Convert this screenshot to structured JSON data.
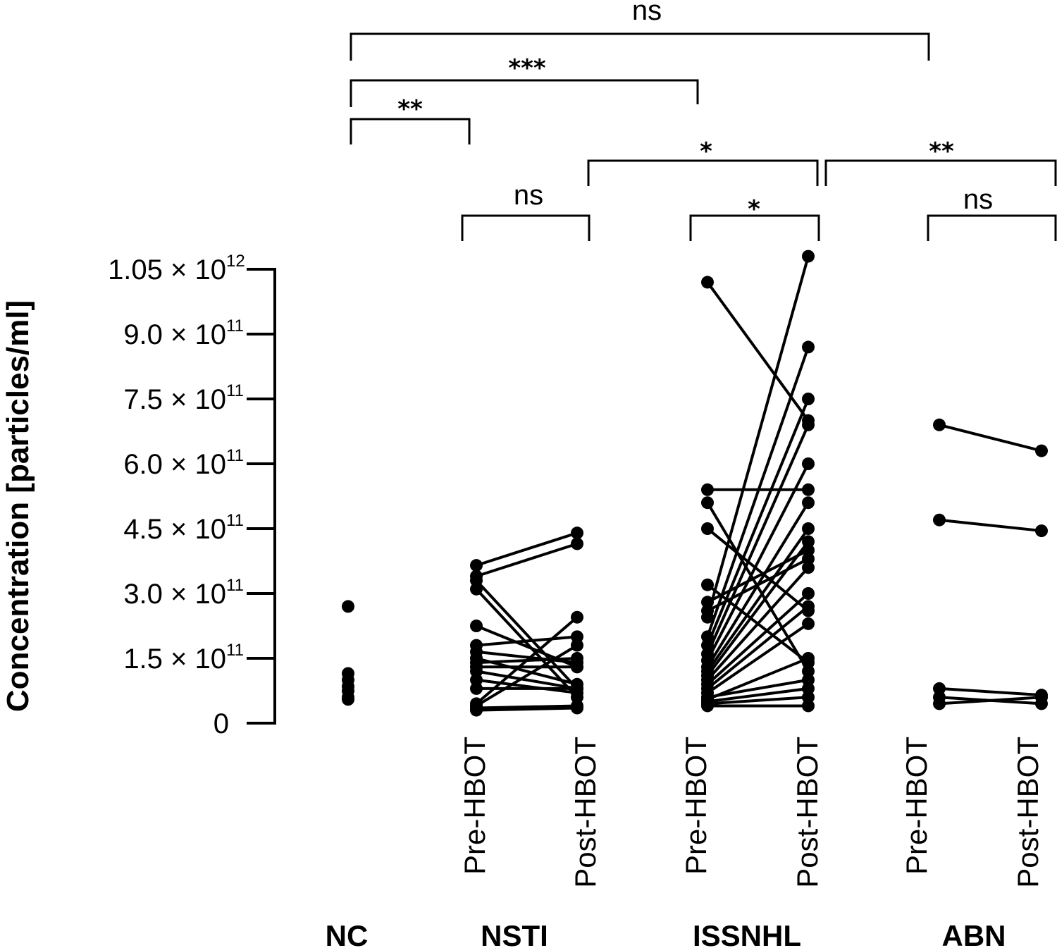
{
  "chart_data": {
    "type": "scatter",
    "ylabel": "Concentration [particles/ml]",
    "ylim": [
      0,
      1050000000000
    ],
    "y_ticks": [
      {
        "value": 0,
        "label": "0",
        "exp": ""
      },
      {
        "value": 150000000000,
        "label": "1.5 × 10",
        "exp": "11"
      },
      {
        "value": 300000000000,
        "label": "3.0 × 10",
        "exp": "11"
      },
      {
        "value": 450000000000,
        "label": "4.5 × 10",
        "exp": "11"
      },
      {
        "value": 600000000000,
        "label": "6.0 × 10",
        "exp": "11"
      },
      {
        "value": 750000000000,
        "label": "7.5 × 10",
        "exp": "11"
      },
      {
        "value": 900000000000,
        "label": "9.0 × 10",
        "exp": "11"
      },
      {
        "value": 1050000000000,
        "label": "1.05 × 10",
        "exp": "12"
      }
    ],
    "conditions": [
      "Pre-HBOT",
      "Post-HBOT",
      "Pre-HBOT",
      "Post-HBOT",
      "Pre-HBOT",
      "Post-HBOT"
    ],
    "groups": [
      "NC",
      "NSTI",
      "ISSNHL",
      "ABN"
    ],
    "NC": [
      270000000000,
      115000000000,
      100000000000,
      85000000000,
      75000000000,
      60000000000,
      55000000000
    ],
    "NSTI": [
      [
        365000000000,
        440000000000
      ],
      [
        340000000000,
        415000000000
      ],
      [
        330000000000,
        80000000000
      ],
      [
        310000000000,
        60000000000
      ],
      [
        225000000000,
        130000000000
      ],
      [
        180000000000,
        200000000000
      ],
      [
        165000000000,
        140000000000
      ],
      [
        150000000000,
        90000000000
      ],
      [
        140000000000,
        150000000000
      ],
      [
        130000000000,
        130000000000
      ],
      [
        120000000000,
        80000000000
      ],
      [
        100000000000,
        70000000000
      ],
      [
        80000000000,
        80000000000
      ],
      [
        45000000000,
        245000000000
      ],
      [
        40000000000,
        180000000000
      ],
      [
        35000000000,
        40000000000
      ],
      [
        30000000000,
        35000000000
      ]
    ],
    "ISSNHL": [
      [
        1020000000000,
        700000000000
      ],
      [
        540000000000,
        540000000000
      ],
      [
        510000000000,
        120000000000
      ],
      [
        450000000000,
        260000000000
      ],
      [
        320000000000,
        140000000000
      ],
      [
        280000000000,
        400000000000
      ],
      [
        260000000000,
        380000000000
      ],
      [
        245000000000,
        1080000000000
      ],
      [
        200000000000,
        870000000000
      ],
      [
        180000000000,
        750000000000
      ],
      [
        160000000000,
        690000000000
      ],
      [
        145000000000,
        600000000000
      ],
      [
        130000000000,
        510000000000
      ],
      [
        120000000000,
        450000000000
      ],
      [
        110000000000,
        420000000000
      ],
      [
        100000000000,
        360000000000
      ],
      [
        90000000000,
        300000000000
      ],
      [
        80000000000,
        270000000000
      ],
      [
        70000000000,
        230000000000
      ],
      [
        60000000000,
        100000000000
      ],
      [
        55000000000,
        150000000000
      ],
      [
        50000000000,
        80000000000
      ],
      [
        45000000000,
        60000000000
      ],
      [
        40000000000,
        40000000000
      ]
    ],
    "ABN": [
      [
        690000000000,
        630000000000
      ],
      [
        470000000000,
        445000000000
      ],
      [
        80000000000,
        65000000000
      ],
      [
        60000000000,
        45000000000
      ],
      [
        45000000000,
        60000000000
      ]
    ],
    "significance": [
      {
        "label": "ns"
      },
      {
        "label": "***"
      },
      {
        "label": "**"
      },
      {
        "label": "*"
      },
      {
        "label": "**"
      },
      {
        "label": "ns"
      },
      {
        "label": "*"
      },
      {
        "label": "ns"
      }
    ]
  }
}
